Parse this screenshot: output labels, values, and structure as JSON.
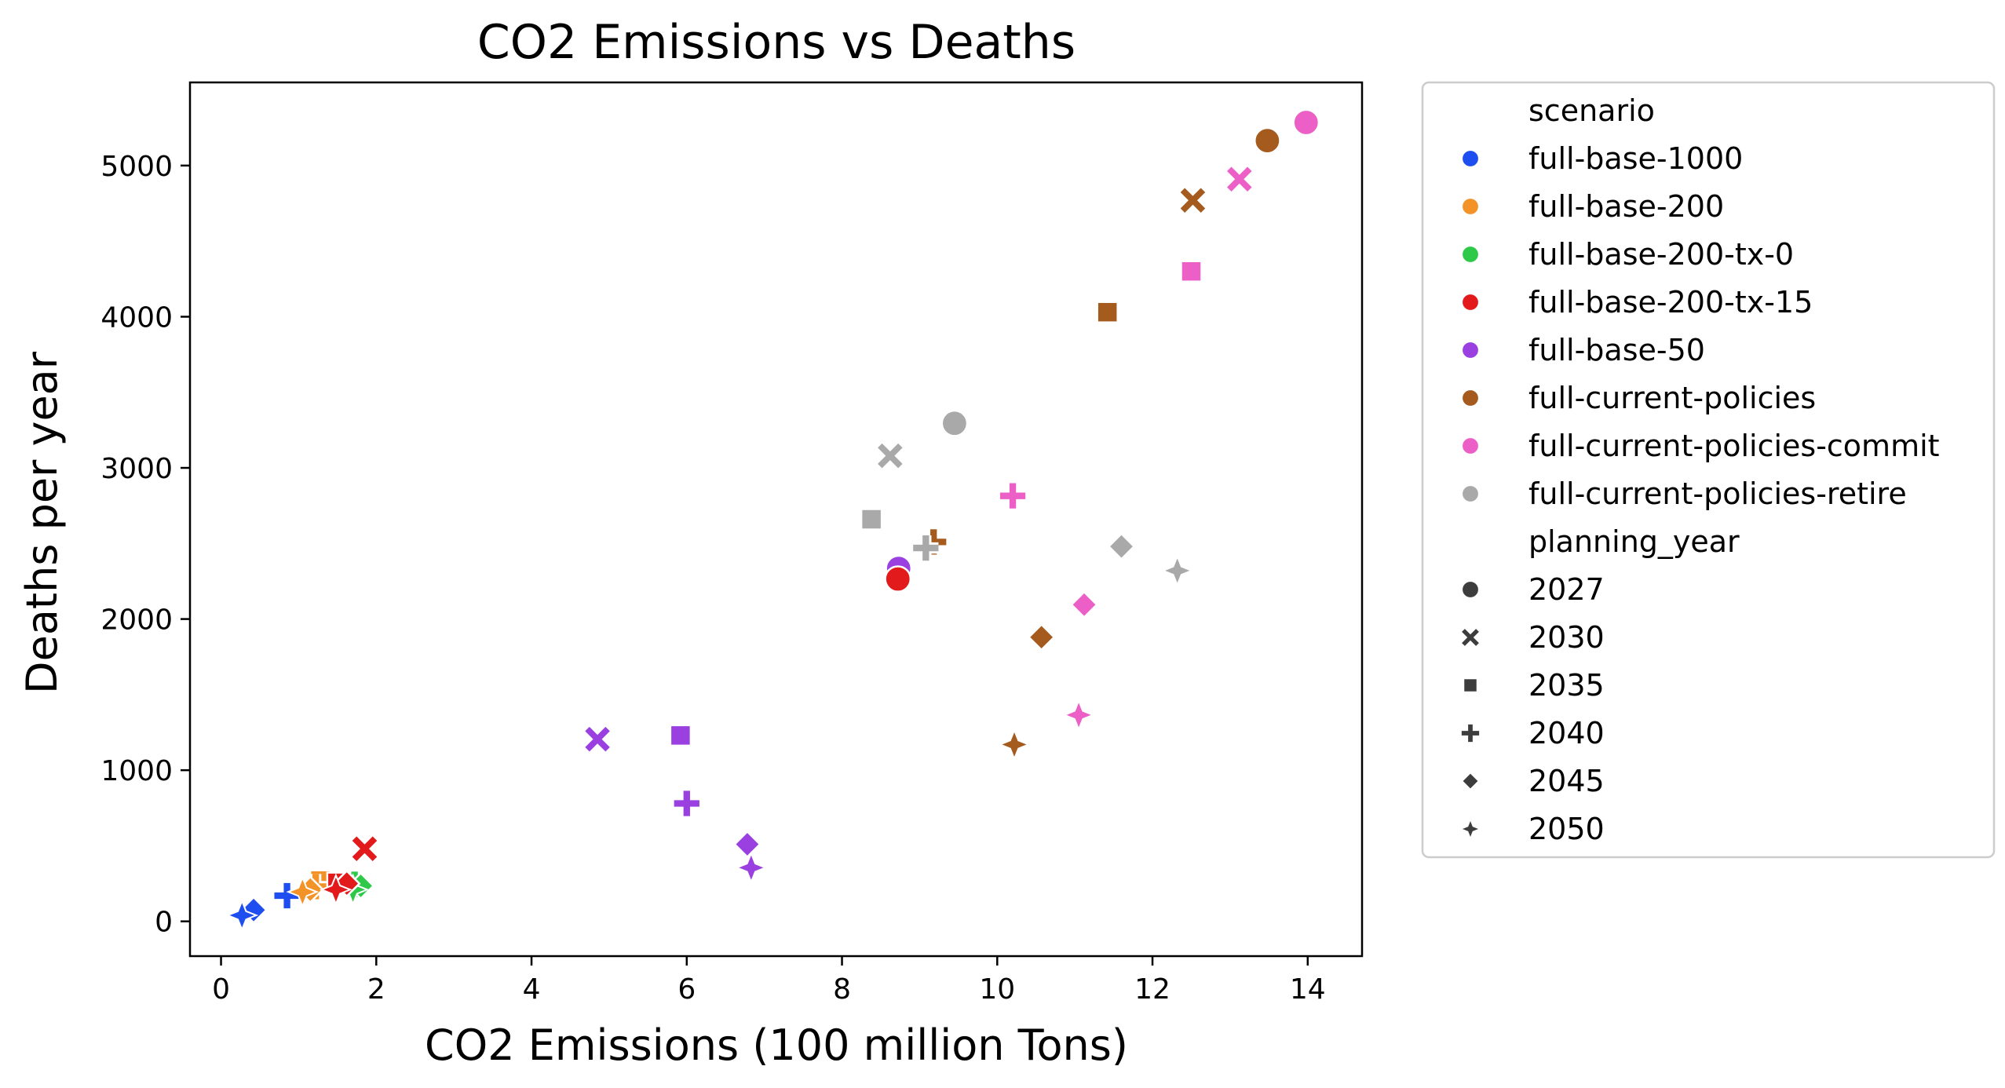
{
  "chart_data": {
    "type": "scatter",
    "title": "CO2 Emissions vs Deaths",
    "xlabel": "CO2 Emissions (100 million Tons)",
    "ylabel": "Deaths per year",
    "xlim": [
      -0.4,
      14.7
    ],
    "ylim": [
      -230,
      5550
    ],
    "xticks": [
      0,
      2,
      4,
      6,
      8,
      10,
      12,
      14
    ],
    "yticks": [
      0,
      1000,
      2000,
      3000,
      4000,
      5000
    ],
    "xtick_labels": [
      "0",
      "2",
      "4",
      "6",
      "8",
      "10",
      "12",
      "14"
    ],
    "ytick_labels": [
      "0",
      "1000",
      "2000",
      "3000",
      "4000",
      "5000"
    ],
    "grid": false,
    "legend_position": "outside right, top",
    "legend": {
      "hue_title": "scenario",
      "style_title": "planning_year"
    },
    "hue_colors": {
      "full-base-1000": "#1f4ef0",
      "full-base-200": "#f39226",
      "full-base-200-tx-0": "#2fc94a",
      "full-base-200-tx-15": "#e31a1c",
      "full-base-50": "#9a3fe0",
      "full-current-policies": "#a55a1e",
      "full-current-policies-commit": "#ec5fc6",
      "full-current-policies-retire": "#a9a9a9"
    },
    "style_markers": {
      "2027": "circle",
      "2030": "x",
      "2035": "square",
      "2040": "plus",
      "2045": "diamond",
      "2050": "star4"
    },
    "series": [
      {
        "name": "full-base-1000",
        "points": [
          {
            "x": 0.85,
            "y": 170,
            "year": "2040"
          },
          {
            "x": 0.42,
            "y": 75,
            "year": "2045"
          },
          {
            "x": 0.27,
            "y": 40,
            "year": "2050"
          }
        ]
      },
      {
        "name": "full-base-200",
        "points": [
          {
            "x": 1.28,
            "y": 270,
            "year": "2035"
          },
          {
            "x": 1.22,
            "y": 230,
            "year": "2040"
          },
          {
            "x": 1.15,
            "y": 210,
            "year": "2045"
          },
          {
            "x": 1.05,
            "y": 195,
            "year": "2050"
          }
        ]
      },
      {
        "name": "full-base-200-tx-0",
        "points": [
          {
            "x": 1.68,
            "y": 260,
            "year": "2035"
          },
          {
            "x": 1.72,
            "y": 245,
            "year": "2040"
          },
          {
            "x": 1.8,
            "y": 235,
            "year": "2045"
          },
          {
            "x": 1.7,
            "y": 210,
            "year": "2050"
          }
        ]
      },
      {
        "name": "full-base-200-tx-15",
        "points": [
          {
            "x": 1.85,
            "y": 480,
            "year": "2030"
          },
          {
            "x": 1.5,
            "y": 255,
            "year": "2035"
          },
          {
            "x": 1.62,
            "y": 250,
            "year": "2045"
          },
          {
            "x": 1.48,
            "y": 210,
            "year": "2050"
          }
        ]
      },
      {
        "name": "full-base-50",
        "points": [
          {
            "x": 8.73,
            "y": 2335,
            "year": "2027"
          },
          {
            "x": 4.85,
            "y": 1205,
            "year": "2030"
          },
          {
            "x": 5.92,
            "y": 1230,
            "year": "2035"
          },
          {
            "x": 6.0,
            "y": 780,
            "year": "2040"
          },
          {
            "x": 6.78,
            "y": 510,
            "year": "2045"
          },
          {
            "x": 6.83,
            "y": 355,
            "year": "2050"
          }
        ]
      },
      {
        "name": "full-current-policies",
        "points": [
          {
            "x": 13.48,
            "y": 5165,
            "year": "2027"
          },
          {
            "x": 12.52,
            "y": 4770,
            "year": "2030"
          },
          {
            "x": 11.42,
            "y": 4030,
            "year": "2035"
          },
          {
            "x": 9.18,
            "y": 2510,
            "year": "2040"
          },
          {
            "x": 10.57,
            "y": 1880,
            "year": "2045"
          },
          {
            "x": 10.22,
            "y": 1170,
            "year": "2050"
          }
        ]
      },
      {
        "name": "full-current-policies-commit",
        "points": [
          {
            "x": 13.98,
            "y": 5285,
            "year": "2027"
          },
          {
            "x": 13.12,
            "y": 4910,
            "year": "2030"
          },
          {
            "x": 12.5,
            "y": 4300,
            "year": "2035"
          },
          {
            "x": 10.2,
            "y": 2815,
            "year": "2040"
          },
          {
            "x": 11.12,
            "y": 2095,
            "year": "2045"
          },
          {
            "x": 11.05,
            "y": 1365,
            "year": "2050"
          }
        ]
      },
      {
        "name": "full-current-policies-retire",
        "points": [
          {
            "x": 9.45,
            "y": 3295,
            "year": "2027"
          },
          {
            "x": 8.62,
            "y": 3080,
            "year": "2030"
          },
          {
            "x": 8.38,
            "y": 2660,
            "year": "2035"
          },
          {
            "x": 9.08,
            "y": 2470,
            "year": "2040"
          },
          {
            "x": 11.6,
            "y": 2480,
            "year": "2045"
          },
          {
            "x": 12.32,
            "y": 2320,
            "year": "2050"
          }
        ]
      },
      {
        "name": "full-base-200-tx-15",
        "points": [
          {
            "x": 8.72,
            "y": 2265,
            "year": "2027"
          }
        ]
      }
    ]
  }
}
